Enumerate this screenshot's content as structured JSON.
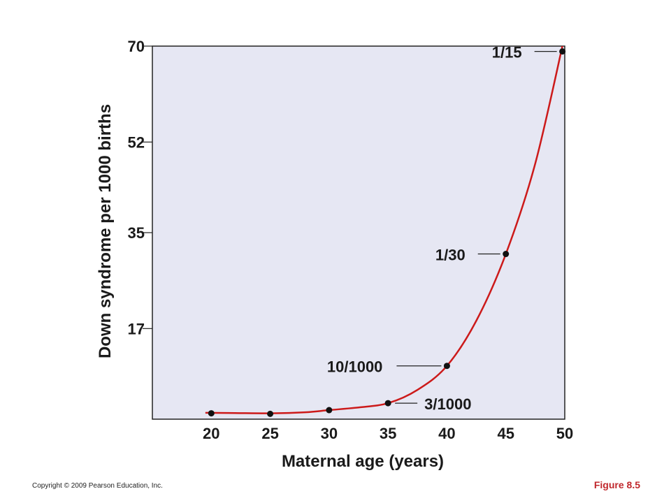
{
  "colors": {
    "plot_background": "#e6e7f3",
    "curve": "#cc1a1a",
    "point": "#111111",
    "figure_label": "#c0282d"
  },
  "chart_data": {
    "type": "line",
    "xlabel": "Maternal age (years)",
    "ylabel": "Down syndrome per 1000 births",
    "xlim": [
      15,
      50
    ],
    "ylim": [
      0,
      70
    ],
    "x_ticks": [
      20,
      25,
      30,
      35,
      40,
      45,
      50
    ],
    "y_ticks": [
      17,
      35,
      52,
      70
    ],
    "grid": false,
    "series": [
      {
        "points": [
          {
            "x": 20,
            "y": 1.1
          },
          {
            "x": 25,
            "y": 1.0
          },
          {
            "x": 30,
            "y": 1.7
          },
          {
            "x": 35,
            "y": 3.0
          },
          {
            "x": 40,
            "y": 10.0
          },
          {
            "x": 45,
            "y": 31.0
          },
          {
            "x": 49.8,
            "y": 69.0
          }
        ],
        "curve": [
          {
            "x": 19.5,
            "y": 1.2
          },
          {
            "x": 22,
            "y": 1.15
          },
          {
            "x": 25,
            "y": 1.1
          },
          {
            "x": 28,
            "y": 1.3
          },
          {
            "x": 30,
            "y": 1.7
          },
          {
            "x": 32.5,
            "y": 2.2
          },
          {
            "x": 35,
            "y": 3.0
          },
          {
            "x": 37.5,
            "y": 5.5
          },
          {
            "x": 40,
            "y": 10.0
          },
          {
            "x": 42.5,
            "y": 18.5
          },
          {
            "x": 45,
            "y": 31.0
          },
          {
            "x": 47.5,
            "y": 48.0
          },
          {
            "x": 50,
            "y": 72.0
          }
        ]
      }
    ],
    "annotations": [
      {
        "text": "1/15",
        "x": 49.8,
        "y": 69.0
      },
      {
        "text": "1/30",
        "x": 45,
        "y": 31.0
      },
      {
        "text": "10/1000",
        "x": 40,
        "y": 10.0
      },
      {
        "text": "3/1000",
        "x": 35,
        "y": 3.0
      }
    ]
  },
  "footer": {
    "copyright": "Copyright © 2009 Pearson Education, Inc.",
    "figure": "Figure 8.5"
  }
}
